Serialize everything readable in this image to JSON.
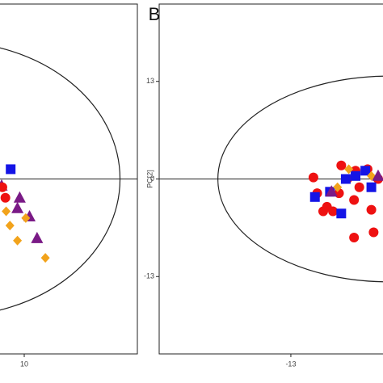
{
  "chart_data": [
    {
      "type": "scatter",
      "xlim": [
        -2,
        25
      ],
      "ylim": [
        -23.3,
        23.3
      ],
      "xticks": [
        10
      ],
      "ellipse_radii": [
        22.7,
        18.3
      ],
      "series": [
        {
          "marker": "triangle",
          "color": "#7a1a86",
          "x": [
            9.4,
            9.1,
            10.7,
            11.7,
            7.0
          ],
          "y": [
            -2.5,
            -3.9,
            -5.0,
            -7.9,
            -0.9
          ]
        },
        {
          "marker": "diamond",
          "color": "#f2a31b",
          "x": [
            7.6,
            8.1,
            9.1,
            12.8,
            10.2
          ],
          "y": [
            -4.3,
            -6.2,
            -8.2,
            -10.5,
            -5.2
          ]
        },
        {
          "marker": "square",
          "color": "#1414e6",
          "x": [
            8.2
          ],
          "y": [
            1.3
          ]
        },
        {
          "marker": "circle",
          "color": "#ee1111",
          "x": [
            7.5,
            7.1
          ],
          "y": [
            -2.5,
            -1.1
          ]
        }
      ]
    },
    {
      "type": "scatter",
      "panel_label": "B",
      "y_label": "PC[2]",
      "xlim": [
        -30.5,
        0
      ],
      "ylim": [
        -23.3,
        23.3
      ],
      "xticks": [
        -13
      ],
      "yticks": [
        13,
        0,
        -13
      ],
      "ellipse_radii": [
        22.7,
        13.7
      ],
      "series": [
        {
          "marker": "circle",
          "color": "#ee1111",
          "x": [
            -10.0,
            -9.5,
            -8.7,
            -8.2,
            -6.3,
            -5.5,
            -4.4,
            -3.9,
            -4.6,
            -2.8,
            -2.3,
            -2.0,
            -1.4,
            -4.6,
            -7.4,
            -6.6
          ],
          "y": [
            0.2,
            -1.9,
            -4.3,
            -3.7,
            1.8,
            0.0,
            1.1,
            -1.1,
            -2.8,
            1.3,
            -4.1,
            -7.1,
            0.0,
            -7.8,
            -4.3,
            -1.9
          ]
        },
        {
          "marker": "square",
          "color": "#1414e6",
          "x": [
            -9.8,
            -7.8,
            -6.3,
            -5.7,
            -4.4,
            -3.1,
            -2.3
          ],
          "y": [
            -2.4,
            -1.7,
            -4.6,
            0.0,
            0.4,
            1.1,
            -1.1
          ]
        },
        {
          "marker": "diamond",
          "color": "#f2a31b",
          "x": [
            -5.3,
            -6.8,
            -2.3
          ],
          "y": [
            1.3,
            -1.1,
            0.4
          ]
        },
        {
          "marker": "triangle",
          "color": "#7a1a86",
          "x": [
            -7.6,
            -1.4
          ],
          "y": [
            -1.7,
            0.4
          ]
        }
      ]
    }
  ]
}
